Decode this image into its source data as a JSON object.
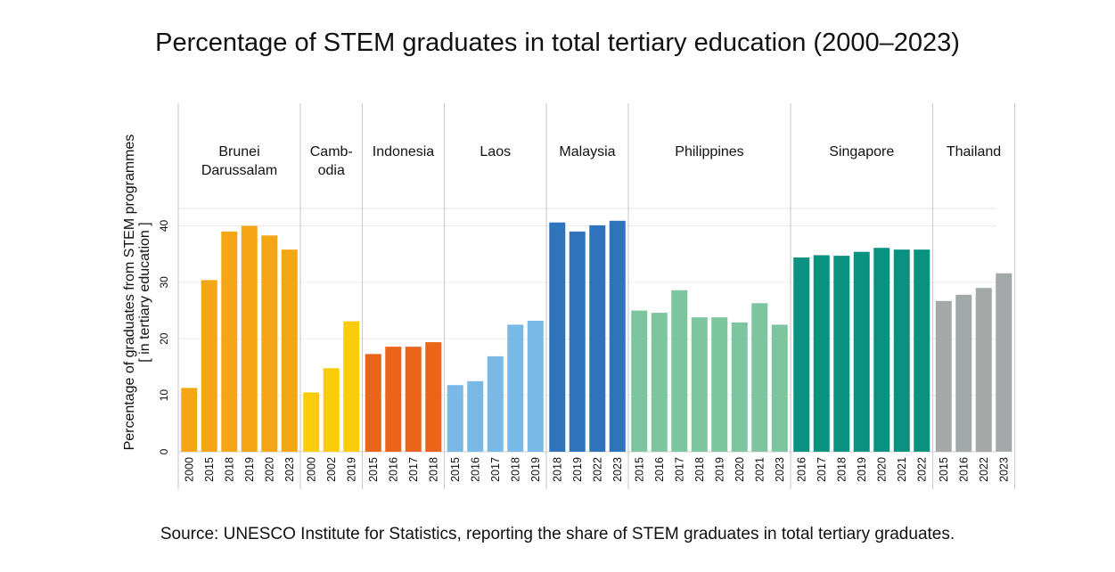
{
  "title": "Percentage of STEM graduates in total tertiary education (2000–2023)",
  "source": "Source: UNESCO Institute for Statistics, reporting the share of STEM graduates in total tertiary graduates.",
  "chart_data": {
    "type": "bar",
    "title": "Percentage of STEM graduates in total tertiary education (2000–2023)",
    "ylabel_lines": [
      "Percentage of graduates from STEM programmes",
      "[ in tertiary education ]"
    ],
    "ylim": [
      0,
      40
    ],
    "yticks": [
      0,
      10,
      20,
      30,
      40
    ],
    "grid": true,
    "groups": [
      {
        "label_lines": [
          "Brunei",
          "Darussalam"
        ],
        "color": "#F5A614",
        "categories": [
          "2000",
          "2015",
          "2018",
          "2019",
          "2020",
          "2023"
        ],
        "values": [
          11.3,
          30.4,
          39.0,
          40.0,
          38.3,
          35.8
        ]
      },
      {
        "label_lines": [
          "Camb-",
          "odia"
        ],
        "color": "#FACC0A",
        "categories": [
          "2000",
          "2002",
          "2019"
        ],
        "values": [
          10.5,
          14.8,
          23.1
        ]
      },
      {
        "label_lines": [
          "Indonesia"
        ],
        "color": "#EB6419",
        "categories": [
          "2015",
          "2016",
          "2017",
          "2018"
        ],
        "values": [
          17.3,
          18.6,
          18.6,
          19.4
        ]
      },
      {
        "label_lines": [
          "Laos"
        ],
        "color": "#7AB8E6",
        "categories": [
          "2015",
          "2016",
          "2017",
          "2018",
          "2019"
        ],
        "values": [
          11.8,
          12.5,
          16.9,
          22.5,
          23.2
        ]
      },
      {
        "label_lines": [
          "Malaysia"
        ],
        "color": "#3073BD",
        "categories": [
          "2018",
          "2019",
          "2022",
          "2023"
        ],
        "values": [
          40.6,
          39.0,
          40.1,
          40.9
        ]
      },
      {
        "label_lines": [
          "Philippines"
        ],
        "color": "#7CC59F",
        "categories": [
          "2015",
          "2016",
          "2017",
          "2018",
          "2019",
          "2020",
          "2021",
          "2023"
        ],
        "values": [
          25.0,
          24.6,
          28.6,
          23.8,
          23.8,
          22.9,
          26.3,
          22.5
        ]
      },
      {
        "label_lines": [
          "Singapore"
        ],
        "color": "#0A9280",
        "categories": [
          "2016",
          "2017",
          "2018",
          "2019",
          "2020",
          "2021",
          "2022"
        ],
        "values": [
          34.4,
          34.8,
          34.7,
          35.4,
          36.1,
          35.8,
          35.8
        ]
      },
      {
        "label_lines": [
          "Thailand"
        ],
        "color": "#A3A8A8",
        "categories": [
          "2015",
          "2016",
          "2022",
          "2023"
        ],
        "values": [
          26.7,
          27.8,
          29.0,
          31.6
        ]
      }
    ]
  }
}
